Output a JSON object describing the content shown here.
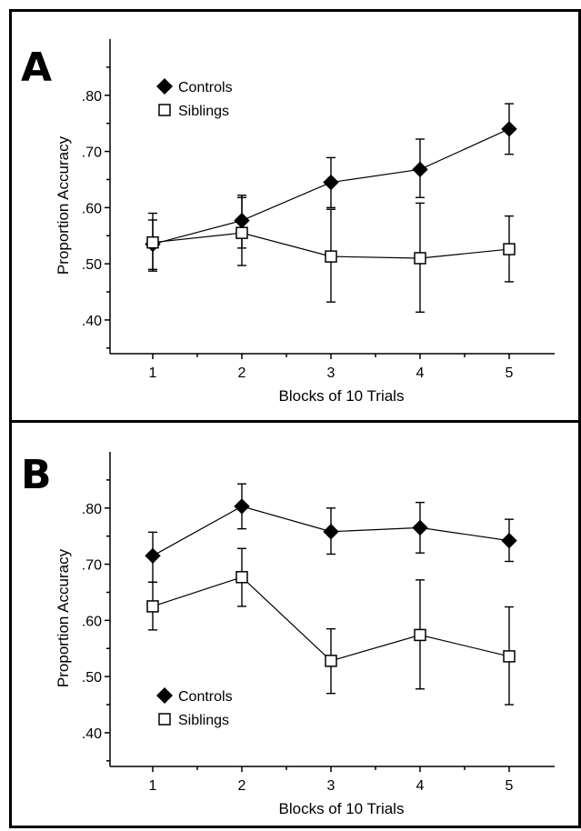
{
  "chart_data": [
    {
      "panel_label": "A",
      "type": "line",
      "xlabel": "Blocks of 10 Trials",
      "ylabel": "Proportion Accuracy",
      "x": [
        1,
        2,
        3,
        4,
        5
      ],
      "x_tick_labels": [
        "1",
        "2",
        "3",
        "4",
        "5"
      ],
      "y_tick_labels": [
        ".40",
        ".50",
        ".60",
        ".70",
        ".80"
      ],
      "y_ticks": [
        0.4,
        0.5,
        0.6,
        0.7,
        0.8
      ],
      "ylim": [
        0.34,
        0.9
      ],
      "legend_position": "top-left",
      "series": [
        {
          "name": "Controls",
          "marker": "filled-diamond",
          "values": [
            0.535,
            0.577,
            0.645,
            0.668,
            0.74
          ],
          "error_upper": [
            0.578,
            0.622,
            0.689,
            0.722,
            0.785
          ],
          "error_lower": [
            0.49,
            0.528,
            0.6,
            0.618,
            0.695
          ]
        },
        {
          "name": "Siblings",
          "marker": "open-square",
          "values": [
            0.538,
            0.555,
            0.513,
            0.51,
            0.526
          ],
          "error_upper": [
            0.59,
            0.618,
            0.597,
            0.608,
            0.585
          ],
          "error_lower": [
            0.487,
            0.497,
            0.432,
            0.414,
            0.468
          ]
        }
      ]
    },
    {
      "panel_label": "B",
      "type": "line",
      "xlabel": "Blocks of 10 Trials",
      "ylabel": "Proportion Accuracy",
      "x": [
        1,
        2,
        3,
        4,
        5
      ],
      "x_tick_labels": [
        "1",
        "2",
        "3",
        "4",
        "5"
      ],
      "y_tick_labels": [
        ".40",
        ".50",
        ".60",
        ".70",
        ".80"
      ],
      "y_ticks": [
        0.4,
        0.5,
        0.6,
        0.7,
        0.8
      ],
      "ylim": [
        0.34,
        0.9
      ],
      "legend_position": "bottom-left",
      "series": [
        {
          "name": "Controls",
          "marker": "filled-diamond",
          "values": [
            0.715,
            0.803,
            0.758,
            0.765,
            0.742
          ],
          "error_upper": [
            0.757,
            0.843,
            0.8,
            0.81,
            0.78
          ],
          "error_lower": [
            0.668,
            0.763,
            0.718,
            0.72,
            0.705
          ]
        },
        {
          "name": "Siblings",
          "marker": "open-square",
          "values": [
            0.625,
            0.677,
            0.528,
            0.574,
            0.536
          ],
          "error_upper": [
            0.668,
            0.728,
            0.585,
            0.672,
            0.624
          ],
          "error_lower": [
            0.583,
            0.625,
            0.47,
            0.478,
            0.45
          ]
        }
      ]
    }
  ]
}
